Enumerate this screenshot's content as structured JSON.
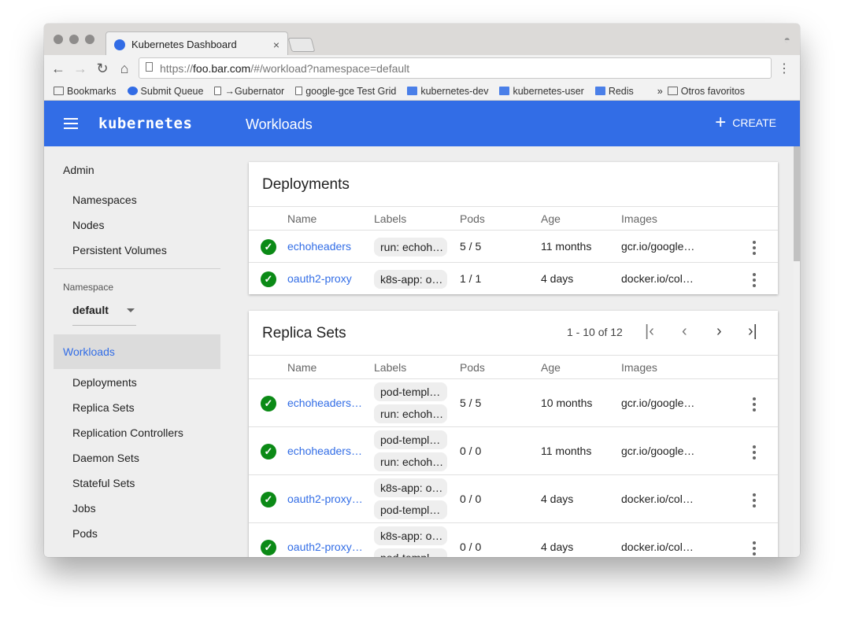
{
  "browser": {
    "tab_title": "Kubernetes Dashboard",
    "url_prefix": "https://",
    "url_host": "foo.bar.com",
    "url_path": "/#/workload?namespace=default",
    "bookmarks": [
      {
        "label": "Bookmarks",
        "icon": "folder-icon"
      },
      {
        "label": "Submit Queue",
        "icon": "kubernetes-icon"
      },
      {
        "label": "→Gubernator",
        "icon": "document-icon"
      },
      {
        "label": "google-gce Test Grid",
        "icon": "document-icon"
      },
      {
        "label": "kubernetes-dev",
        "icon": "group-icon"
      },
      {
        "label": "kubernetes-user",
        "icon": "group-icon"
      },
      {
        "label": "Redis",
        "icon": "group-icon"
      }
    ],
    "more": "»",
    "other_bookmarks": "Otros favoritos"
  },
  "header": {
    "logo": "kubernetes",
    "title": "Workloads",
    "create": "CREATE",
    "color": "#326de6"
  },
  "sidebar": {
    "admin": "Admin",
    "admin_items": [
      "Namespaces",
      "Nodes",
      "Persistent Volumes"
    ],
    "namespace_label": "Namespace",
    "namespace_value": "default",
    "workloads": "Workloads",
    "workload_items": [
      "Deployments",
      "Replica Sets",
      "Replication Controllers",
      "Daemon Sets",
      "Stateful Sets",
      "Jobs",
      "Pods"
    ]
  },
  "columns": [
    "Name",
    "Labels",
    "Pods",
    "Age",
    "Images"
  ],
  "deployments": {
    "title": "Deployments",
    "rows": [
      {
        "name": "echoheaders",
        "labels": [
          "run: echoh…"
        ],
        "pods": "5 / 5",
        "age": "11 months",
        "images": "gcr.io/google…"
      },
      {
        "name": "oauth2-proxy",
        "labels": [
          "k8s-app: o…"
        ],
        "pods": "1 / 1",
        "age": "4 days",
        "images": "docker.io/col…"
      }
    ]
  },
  "replica_sets": {
    "title": "Replica Sets",
    "pagination": "1 - 10 of 12",
    "rows": [
      {
        "name": "echoheaders…",
        "labels": [
          "pod-templ…",
          "run: echoh…"
        ],
        "pods": "5 / 5",
        "age": "10 months",
        "images": "gcr.io/google…"
      },
      {
        "name": "echoheaders…",
        "labels": [
          "pod-templ…",
          "run: echoh…"
        ],
        "pods": "0 / 0",
        "age": "11 months",
        "images": "gcr.io/google…"
      },
      {
        "name": "oauth2-proxy…",
        "labels": [
          "k8s-app: o…",
          "pod-templ…"
        ],
        "pods": "0 / 0",
        "age": "4 days",
        "images": "docker.io/col…"
      },
      {
        "name": "oauth2-proxy…",
        "labels": [
          "k8s-app: o…",
          "pod-templ…"
        ],
        "pods": "0 / 0",
        "age": "4 days",
        "images": "docker.io/col…"
      }
    ]
  }
}
